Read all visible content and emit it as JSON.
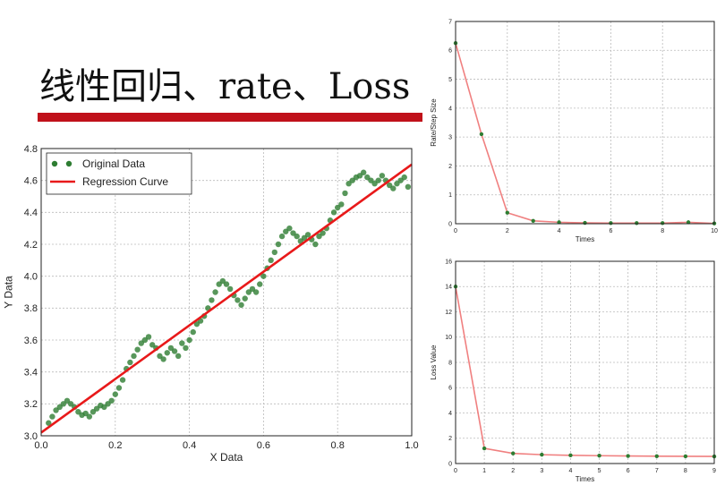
{
  "slide": {
    "title": "线性回归、rate、Loss",
    "accent_color": "#c0111a"
  },
  "chart_data": [
    {
      "id": "regression",
      "type": "scatter",
      "xlabel": "X Data",
      "ylabel": "Y Data",
      "xlim": [
        0.0,
        1.0
      ],
      "ylim": [
        3.0,
        4.8
      ],
      "xticks": [
        "0.0",
        "0.2",
        "0.4",
        "0.6",
        "0.8",
        "1.0"
      ],
      "yticks": [
        "3.0",
        "3.2",
        "3.4",
        "3.6",
        "3.8",
        "4.0",
        "4.2",
        "4.4",
        "4.6",
        "4.8"
      ],
      "grid": true,
      "legend": "top-left",
      "series": [
        {
          "name": "Original Data",
          "kind": "scatter",
          "color": "#2e7d32",
          "x": [
            0.02,
            0.03,
            0.04,
            0.05,
            0.06,
            0.07,
            0.08,
            0.09,
            0.1,
            0.11,
            0.12,
            0.13,
            0.14,
            0.15,
            0.16,
            0.17,
            0.18,
            0.19,
            0.2,
            0.21,
            0.22,
            0.23,
            0.24,
            0.25,
            0.26,
            0.27,
            0.28,
            0.29,
            0.3,
            0.31,
            0.32,
            0.33,
            0.34,
            0.35,
            0.36,
            0.37,
            0.38,
            0.39,
            0.4,
            0.41,
            0.42,
            0.43,
            0.44,
            0.45,
            0.46,
            0.47,
            0.48,
            0.49,
            0.5,
            0.51,
            0.52,
            0.53,
            0.54,
            0.55,
            0.56,
            0.57,
            0.58,
            0.59,
            0.6,
            0.61,
            0.62,
            0.63,
            0.64,
            0.65,
            0.66,
            0.67,
            0.68,
            0.69,
            0.7,
            0.71,
            0.72,
            0.73,
            0.74,
            0.75,
            0.76,
            0.77,
            0.78,
            0.79,
            0.8,
            0.81,
            0.82,
            0.83,
            0.84,
            0.85,
            0.86,
            0.87,
            0.88,
            0.89,
            0.9,
            0.91,
            0.92,
            0.93,
            0.94,
            0.95,
            0.96,
            0.97,
            0.98,
            0.99
          ],
          "y": [
            3.08,
            3.12,
            3.16,
            3.18,
            3.2,
            3.22,
            3.2,
            3.18,
            3.15,
            3.13,
            3.14,
            3.12,
            3.15,
            3.17,
            3.19,
            3.18,
            3.2,
            3.22,
            3.26,
            3.3,
            3.35,
            3.42,
            3.46,
            3.5,
            3.54,
            3.58,
            3.6,
            3.62,
            3.57,
            3.55,
            3.5,
            3.48,
            3.52,
            3.55,
            3.53,
            3.5,
            3.58,
            3.55,
            3.6,
            3.65,
            3.7,
            3.72,
            3.75,
            3.8,
            3.85,
            3.9,
            3.95,
            3.97,
            3.95,
            3.92,
            3.88,
            3.85,
            3.82,
            3.86,
            3.9,
            3.92,
            3.9,
            3.95,
            4.0,
            4.05,
            4.1,
            4.15,
            4.2,
            4.25,
            4.28,
            4.3,
            4.27,
            4.25,
            4.22,
            4.24,
            4.26,
            4.23,
            4.2,
            4.25,
            4.27,
            4.3,
            4.35,
            4.4,
            4.43,
            4.45,
            4.52,
            4.58,
            4.6,
            4.62,
            4.63,
            4.65,
            4.62,
            4.6,
            4.58,
            4.6,
            4.63,
            4.6,
            4.57,
            4.55,
            4.58,
            4.6,
            4.62,
            4.56
          ]
        },
        {
          "name": "Regression Curve",
          "kind": "line",
          "color": "#e8191a",
          "x": [
            0.0,
            1.0
          ],
          "y": [
            3.02,
            4.7
          ]
        }
      ]
    },
    {
      "id": "rate",
      "type": "line",
      "xlabel": "Times",
      "ylabel": "Rate/Step Size",
      "xlim": [
        0,
        10
      ],
      "ylim": [
        0,
        7
      ],
      "xticks": [
        "0",
        "2",
        "4",
        "6",
        "8",
        "10"
      ],
      "yticks": [
        "0",
        "1",
        "2",
        "3",
        "4",
        "5",
        "6",
        "7"
      ],
      "grid": true,
      "series": [
        {
          "color": "#f08080",
          "marker_color": "#2e7d32",
          "x": [
            0,
            1,
            2,
            3,
            4,
            5,
            6,
            7,
            8,
            9,
            10
          ],
          "y": [
            6.25,
            3.1,
            0.38,
            0.1,
            0.05,
            0.03,
            0.02,
            0.02,
            0.02,
            0.05,
            0.01
          ]
        }
      ]
    },
    {
      "id": "loss",
      "type": "line",
      "xlabel": "Times",
      "ylabel": "Loss Value",
      "xlim": [
        0,
        9
      ],
      "ylim": [
        0,
        16
      ],
      "xticks": [
        "0",
        "1",
        "2",
        "3",
        "4",
        "5",
        "6",
        "7",
        "8",
        "9"
      ],
      "yticks": [
        "0",
        "2",
        "4",
        "6",
        "8",
        "10",
        "12",
        "14",
        "16"
      ],
      "grid": true,
      "series": [
        {
          "color": "#f08080",
          "marker_color": "#2e7d32",
          "x": [
            0,
            1,
            2,
            3,
            4,
            5,
            6,
            7,
            8,
            9
          ],
          "y": [
            14.0,
            1.2,
            0.8,
            0.7,
            0.65,
            0.62,
            0.6,
            0.58,
            0.57,
            0.56
          ]
        }
      ]
    }
  ]
}
